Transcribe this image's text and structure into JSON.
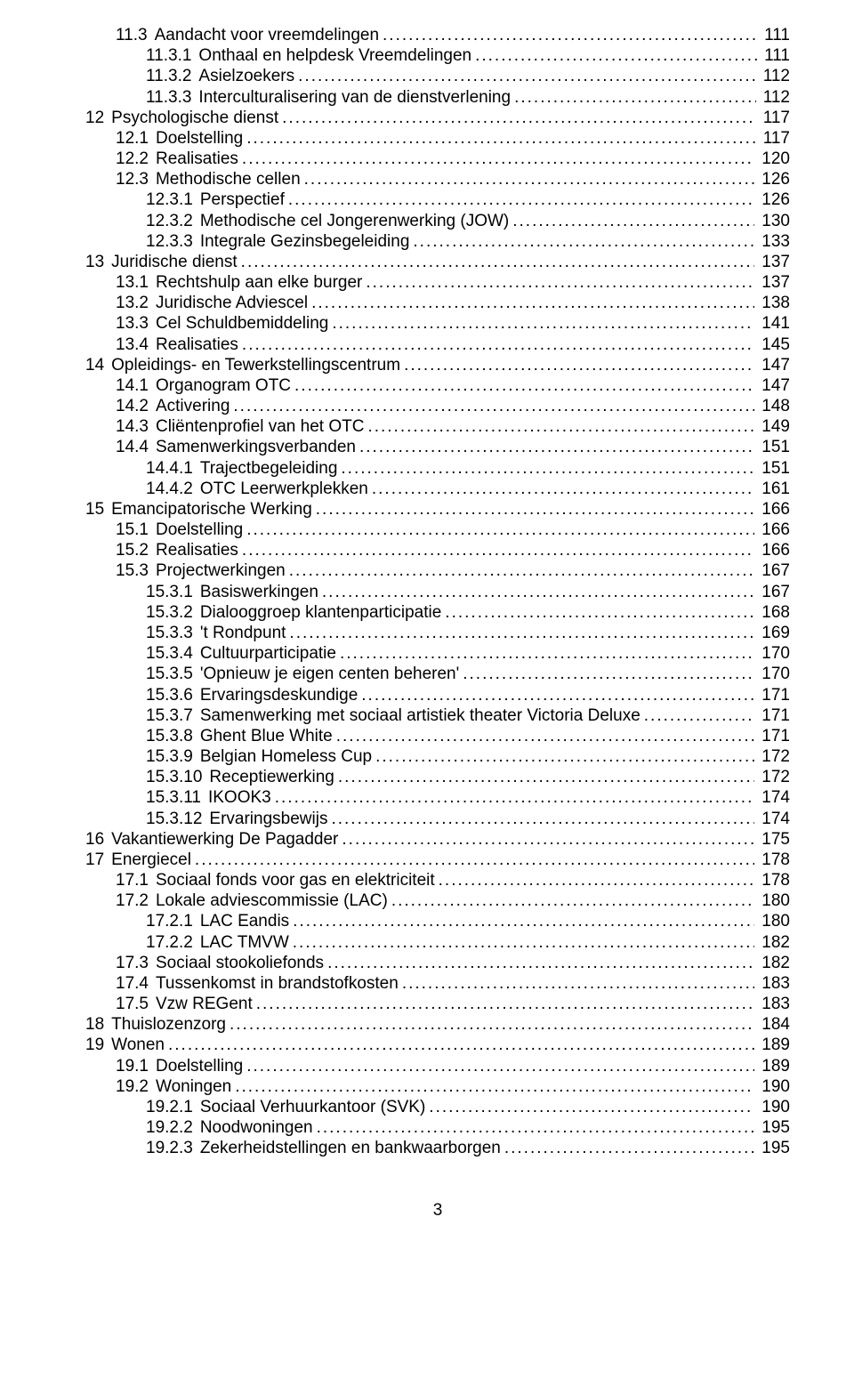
{
  "page_footer_number": "3",
  "font": {
    "family": "Arial",
    "size_pt": 14,
    "color": "#000000"
  },
  "background_color": "#ffffff",
  "entries": [
    {
      "level": 1,
      "num": "11.3",
      "title": "Aandacht voor vreemdelingen",
      "page": "111"
    },
    {
      "level": 2,
      "num": "11.3.1",
      "title": "Onthaal en helpdesk Vreemdelingen",
      "page": "111"
    },
    {
      "level": 2,
      "num": "11.3.2",
      "title": "Asielzoekers",
      "page": "112"
    },
    {
      "level": 2,
      "num": "11.3.3",
      "title": "Interculturalisering van de dienstverlening",
      "page": "112"
    },
    {
      "level": 0,
      "num": "12",
      "title": "Psychologische dienst",
      "page": "117"
    },
    {
      "level": 1,
      "num": "12.1",
      "title": "Doelstelling",
      "page": "117"
    },
    {
      "level": 1,
      "num": "12.2",
      "title": "Realisaties",
      "page": "120"
    },
    {
      "level": 1,
      "num": "12.3",
      "title": "Methodische cellen",
      "page": "126"
    },
    {
      "level": 2,
      "num": "12.3.1",
      "title": "Perspectief",
      "page": "126"
    },
    {
      "level": 2,
      "num": "12.3.2",
      "title": "Methodische cel Jongerenwerking (JOW)",
      "page": "130"
    },
    {
      "level": 2,
      "num": "12.3.3",
      "title": "Integrale Gezinsbegeleiding",
      "page": "133"
    },
    {
      "level": 0,
      "num": "13",
      "title": "Juridische dienst",
      "page": "137"
    },
    {
      "level": 1,
      "num": "13.1",
      "title": "Rechtshulp aan elke burger",
      "page": "137"
    },
    {
      "level": 1,
      "num": "13.2",
      "title": "Juridische Adviescel",
      "page": "138"
    },
    {
      "level": 1,
      "num": "13.3",
      "title": "Cel Schuldbemiddeling",
      "page": "141"
    },
    {
      "level": 1,
      "num": "13.4",
      "title": "Realisaties",
      "page": "145"
    },
    {
      "level": 0,
      "num": "14",
      "title": "Opleidings- en Tewerkstellingscentrum",
      "page": "147"
    },
    {
      "level": 1,
      "num": "14.1",
      "title": "Organogram OTC",
      "page": "147"
    },
    {
      "level": 1,
      "num": "14.2",
      "title": "Activering",
      "page": "148"
    },
    {
      "level": 1,
      "num": "14.3",
      "title": "Cliëntenprofiel van het OTC",
      "page": "149"
    },
    {
      "level": 1,
      "num": "14.4",
      "title": "Samenwerkingsverbanden",
      "page": "151"
    },
    {
      "level": 2,
      "num": "14.4.1",
      "title": "Trajectbegeleiding",
      "page": "151"
    },
    {
      "level": 2,
      "num": "14.4.2",
      "title": "OTC Leerwerkplekken",
      "page": "161"
    },
    {
      "level": 0,
      "num": "15",
      "title": "Emancipatorische Werking",
      "page": "166"
    },
    {
      "level": 1,
      "num": "15.1",
      "title": "Doelstelling",
      "page": "166"
    },
    {
      "level": 1,
      "num": "15.2",
      "title": "Realisaties",
      "page": "166"
    },
    {
      "level": 1,
      "num": "15.3",
      "title": "Projectwerkingen",
      "page": "167"
    },
    {
      "level": 2,
      "num": "15.3.1",
      "title": "Basiswerkingen",
      "page": "167"
    },
    {
      "level": 2,
      "num": "15.3.2",
      "title": "Dialooggroep klantenparticipatie",
      "page": "168"
    },
    {
      "level": 2,
      "num": "15.3.3",
      "title": "'t Rondpunt",
      "page": "169"
    },
    {
      "level": 2,
      "num": "15.3.4",
      "title": "Cultuurparticipatie",
      "page": "170"
    },
    {
      "level": 2,
      "num": "15.3.5",
      "title": "'Opnieuw je eigen centen beheren'",
      "page": "170"
    },
    {
      "level": 2,
      "num": "15.3.6",
      "title": "Ervaringsdeskundige",
      "page": "171"
    },
    {
      "level": 2,
      "num": "15.3.7",
      "title": "Samenwerking met sociaal artistiek theater Victoria Deluxe",
      "page": "171"
    },
    {
      "level": 2,
      "num": "15.3.8",
      "title": "Ghent Blue White",
      "page": "171"
    },
    {
      "level": 2,
      "num": "15.3.9",
      "title": "Belgian Homeless Cup",
      "page": "172"
    },
    {
      "level": 2,
      "num": "15.3.10",
      "title": "Receptiewerking",
      "page": "172"
    },
    {
      "level": 2,
      "num": "15.3.11",
      "title": "IKOOK3",
      "page": "174"
    },
    {
      "level": 2,
      "num": "15.3.12",
      "title": "Ervaringsbewijs",
      "page": "174"
    },
    {
      "level": 0,
      "num": "16",
      "title": "Vakantiewerking De Pagadder",
      "page": "175"
    },
    {
      "level": 0,
      "num": "17",
      "title": "Energiecel",
      "page": "178"
    },
    {
      "level": 1,
      "num": "17.1",
      "title": "Sociaal fonds voor gas en elektriciteit",
      "page": "178"
    },
    {
      "level": 1,
      "num": "17.2",
      "title": "Lokale adviescommissie (LAC)",
      "page": "180"
    },
    {
      "level": 2,
      "num": "17.2.1",
      "title": "LAC Eandis",
      "page": "180"
    },
    {
      "level": 2,
      "num": "17.2.2",
      "title": "LAC TMVW",
      "page": "182"
    },
    {
      "level": 1,
      "num": "17.3",
      "title": "Sociaal stookoliefonds",
      "page": "182"
    },
    {
      "level": 1,
      "num": "17.4",
      "title": "Tussenkomst in brandstofkosten",
      "page": "183"
    },
    {
      "level": 1,
      "num": "17.5",
      "title": "Vzw REGent",
      "page": "183"
    },
    {
      "level": 0,
      "num": "18",
      "title": "Thuislozenzorg",
      "page": "184"
    },
    {
      "level": 0,
      "num": "19",
      "title": "Wonen",
      "page": "189"
    },
    {
      "level": 1,
      "num": "19.1",
      "title": "Doelstelling",
      "page": "189"
    },
    {
      "level": 1,
      "num": "19.2",
      "title": "Woningen",
      "page": "190"
    },
    {
      "level": 2,
      "num": "19.2.1",
      "title": "Sociaal Verhuurkantoor (SVK)",
      "page": "190"
    },
    {
      "level": 2,
      "num": "19.2.2",
      "title": "Noodwoningen",
      "page": "195"
    },
    {
      "level": 2,
      "num": "19.2.3",
      "title": "Zekerheidstellingen en bankwaarborgen",
      "page": "195"
    }
  ]
}
